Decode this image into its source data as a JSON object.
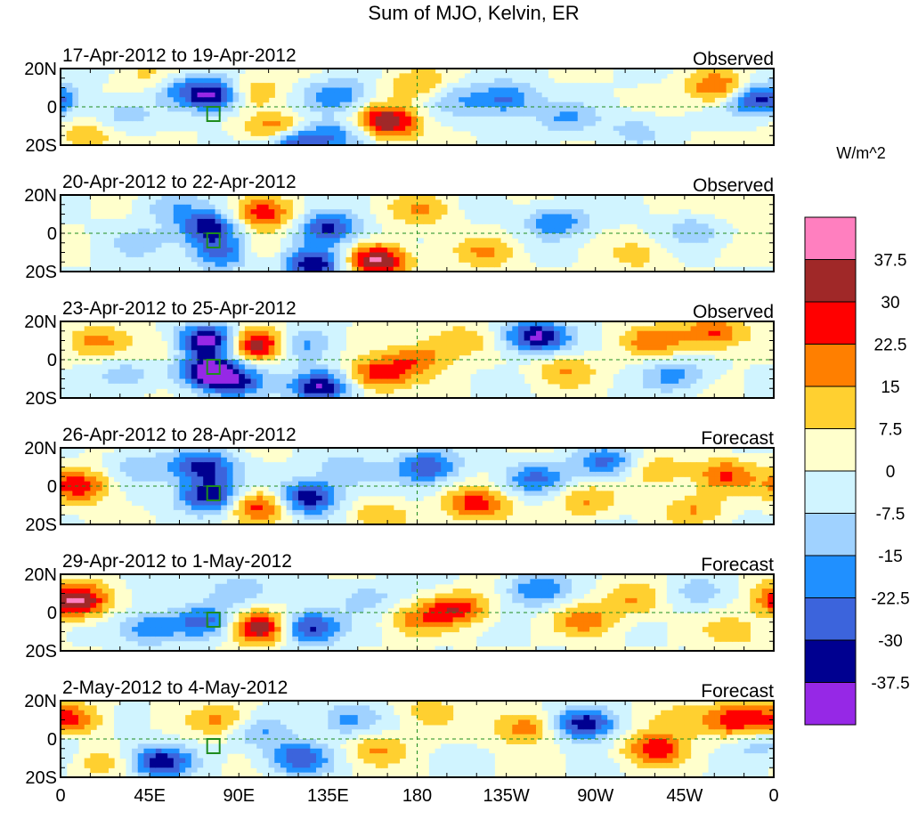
{
  "chart_data": {
    "type": "heatmap",
    "title": "Sum of MJO, Kelvin, ER",
    "units": "W/m^2",
    "lon_range": [
      0,
      360
    ],
    "lat_range": [
      -20,
      20
    ],
    "x_ticks": [
      {
        "lon": 0,
        "label": "0"
      },
      {
        "lon": 45,
        "label": "45E"
      },
      {
        "lon": 90,
        "label": "90E"
      },
      {
        "lon": 135,
        "label": "135E"
      },
      {
        "lon": 180,
        "label": "180"
      },
      {
        "lon": 225,
        "label": "135W"
      },
      {
        "lon": 270,
        "label": "90W"
      },
      {
        "lon": 315,
        "label": "45W"
      },
      {
        "lon": 360,
        "label": "0"
      }
    ],
    "y_ticks": [
      {
        "lat": 20,
        "label": "20N"
      },
      {
        "lat": 0,
        "label": "0"
      },
      {
        "lat": -20,
        "label": "20S"
      }
    ],
    "colorbar": {
      "colors": [
        "#ff7fbf",
        "#a02828",
        "#ff0000",
        "#ff7f00",
        "#ffd030",
        "#ffffcc",
        "#d0f4ff",
        "#a0d2ff",
        "#2090ff",
        "#3c64dc",
        "#000090",
        "#9628e6"
      ],
      "labels": [
        "37.5",
        "30",
        "22.5",
        "15",
        "7.5",
        "0",
        "-7.5",
        "-15",
        "-22.5",
        "-30",
        "-37.5"
      ]
    },
    "panels": [
      {
        "date": "17-Apr-2012 to 19-Apr-2012",
        "kind": "Observed",
        "anomalies": [
          {
            "lon": 78,
            "lat": 6,
            "v": -40
          },
          {
            "lon": 60,
            "lat": 10,
            "v": -15
          },
          {
            "lon": 118,
            "lat": -18,
            "v": -38
          },
          {
            "lon": 140,
            "lat": 6,
            "v": -22
          },
          {
            "lon": 165,
            "lat": -8,
            "v": 38
          },
          {
            "lon": 110,
            "lat": -12,
            "v": 28
          },
          {
            "lon": 95,
            "lat": 8,
            "v": 18
          },
          {
            "lon": 180,
            "lat": 12,
            "v": 15
          },
          {
            "lon": 200,
            "lat": 4,
            "v": -12
          },
          {
            "lon": 225,
            "lat": 4,
            "v": -25
          },
          {
            "lon": 255,
            "lat": -6,
            "v": -15
          },
          {
            "lon": 290,
            "lat": -12,
            "v": -10
          },
          {
            "lon": 332,
            "lat": 10,
            "v": 25
          },
          {
            "lon": 352,
            "lat": 4,
            "v": -35
          },
          {
            "lon": 15,
            "lat": -15,
            "v": 15
          },
          {
            "lon": 30,
            "lat": -5,
            "v": -12
          },
          {
            "lon": 45,
            "lat": 15,
            "v": 10
          },
          {
            "lon": 140,
            "lat": -15,
            "v": -18
          }
        ]
      },
      {
        "date": "20-Apr-2012 to 22-Apr-2012",
        "kind": "Observed",
        "anomalies": [
          {
            "lon": 75,
            "lat": 3,
            "v": -35
          },
          {
            "lon": 82,
            "lat": -10,
            "v": -30
          },
          {
            "lon": 135,
            "lat": 2,
            "v": -32
          },
          {
            "lon": 128,
            "lat": -16,
            "v": -38
          },
          {
            "lon": 160,
            "lat": -14,
            "v": 40
          },
          {
            "lon": 102,
            "lat": 10,
            "v": 25
          },
          {
            "lon": 98,
            "lat": -8,
            "v": 15
          },
          {
            "lon": 182,
            "lat": 12,
            "v": 15
          },
          {
            "lon": 215,
            "lat": -10,
            "v": 15
          },
          {
            "lon": 250,
            "lat": 6,
            "v": -22
          },
          {
            "lon": 320,
            "lat": 2,
            "v": -12
          },
          {
            "lon": 40,
            "lat": -5,
            "v": -10
          },
          {
            "lon": 55,
            "lat": 14,
            "v": -12
          },
          {
            "lon": 340,
            "lat": 14,
            "v": 10
          },
          {
            "lon": 292,
            "lat": -12,
            "v": 10
          }
        ]
      },
      {
        "date": "23-Apr-2012 to 25-Apr-2012",
        "kind": "Observed",
        "anomalies": [
          {
            "lon": 75,
            "lat": 10,
            "v": -45
          },
          {
            "lon": 75,
            "lat": -6,
            "v": -42
          },
          {
            "lon": 100,
            "lat": 8,
            "v": 40
          },
          {
            "lon": 90,
            "lat": -12,
            "v": -25
          },
          {
            "lon": 130,
            "lat": -14,
            "v": -40
          },
          {
            "lon": 120,
            "lat": 8,
            "v": -18
          },
          {
            "lon": 160,
            "lat": -8,
            "v": 28
          },
          {
            "lon": 180,
            "lat": 0,
            "v": 20
          },
          {
            "lon": 200,
            "lat": 10,
            "v": 15
          },
          {
            "lon": 240,
            "lat": 12,
            "v": -40
          },
          {
            "lon": 255,
            "lat": -5,
            "v": 15
          },
          {
            "lon": 300,
            "lat": 10,
            "v": 20
          },
          {
            "lon": 310,
            "lat": -8,
            "v": -18
          },
          {
            "lon": 330,
            "lat": 14,
            "v": 25
          },
          {
            "lon": 20,
            "lat": 10,
            "v": 15
          },
          {
            "lon": 35,
            "lat": -8,
            "v": -12
          },
          {
            "lon": 50,
            "lat": 6,
            "v": 10
          }
        ]
      },
      {
        "date": "26-Apr-2012 to 28-Apr-2012",
        "kind": "Forecast",
        "anomalies": [
          {
            "lon": 72,
            "lat": 10,
            "v": -35
          },
          {
            "lon": 75,
            "lat": -5,
            "v": -38
          },
          {
            "lon": 10,
            "lat": 0,
            "v": 28
          },
          {
            "lon": 100,
            "lat": -10,
            "v": 28
          },
          {
            "lon": 125,
            "lat": -6,
            "v": -38
          },
          {
            "lon": 145,
            "lat": 8,
            "v": -15
          },
          {
            "lon": 185,
            "lat": 10,
            "v": -30
          },
          {
            "lon": 210,
            "lat": -10,
            "v": 28
          },
          {
            "lon": 240,
            "lat": 4,
            "v": -22
          },
          {
            "lon": 275,
            "lat": 12,
            "v": -25
          },
          {
            "lon": 265,
            "lat": -8,
            "v": 15
          },
          {
            "lon": 300,
            "lat": 8,
            "v": 15
          },
          {
            "lon": 335,
            "lat": 6,
            "v": 22
          },
          {
            "lon": 320,
            "lat": -12,
            "v": 15
          },
          {
            "lon": 40,
            "lat": 10,
            "v": -12
          },
          {
            "lon": 160,
            "lat": -15,
            "v": 12
          }
        ]
      },
      {
        "date": "29-Apr-2012 to 1-May-2012",
        "kind": "Forecast",
        "anomalies": [
          {
            "lon": 8,
            "lat": 6,
            "v": 40
          },
          {
            "lon": 45,
            "lat": -8,
            "v": -22
          },
          {
            "lon": 72,
            "lat": -5,
            "v": -25
          },
          {
            "lon": 100,
            "lat": -8,
            "v": 38
          },
          {
            "lon": 125,
            "lat": -8,
            "v": -35
          },
          {
            "lon": 155,
            "lat": 8,
            "v": -12
          },
          {
            "lon": 180,
            "lat": -4,
            "v": 15
          },
          {
            "lon": 200,
            "lat": 2,
            "v": 28
          },
          {
            "lon": 240,
            "lat": 12,
            "v": -22
          },
          {
            "lon": 265,
            "lat": -4,
            "v": 18
          },
          {
            "lon": 290,
            "lat": 6,
            "v": 15
          },
          {
            "lon": 340,
            "lat": -10,
            "v": 12
          },
          {
            "lon": 320,
            "lat": 10,
            "v": -10
          },
          {
            "lon": 88,
            "lat": 12,
            "v": -15
          }
        ]
      },
      {
        "date": "2-May-2012 to 4-May-2012",
        "kind": "Forecast",
        "anomalies": [
          {
            "lon": 5,
            "lat": 10,
            "v": 25
          },
          {
            "lon": 50,
            "lat": -12,
            "v": -35
          },
          {
            "lon": 82,
            "lat": 10,
            "v": 18
          },
          {
            "lon": 100,
            "lat": 4,
            "v": -15
          },
          {
            "lon": 120,
            "lat": -10,
            "v": -28
          },
          {
            "lon": 145,
            "lat": 10,
            "v": -18
          },
          {
            "lon": 160,
            "lat": -5,
            "v": 15
          },
          {
            "lon": 185,
            "lat": 14,
            "v": 12
          },
          {
            "lon": 235,
            "lat": 6,
            "v": 22
          },
          {
            "lon": 265,
            "lat": 8,
            "v": -38
          },
          {
            "lon": 300,
            "lat": -5,
            "v": 28
          },
          {
            "lon": 310,
            "lat": 10,
            "v": 15
          },
          {
            "lon": 340,
            "lat": 10,
            "v": 25
          },
          {
            "lon": 355,
            "lat": -2,
            "v": -12
          },
          {
            "lon": 20,
            "lat": -12,
            "v": 10
          }
        ]
      }
    ]
  }
}
